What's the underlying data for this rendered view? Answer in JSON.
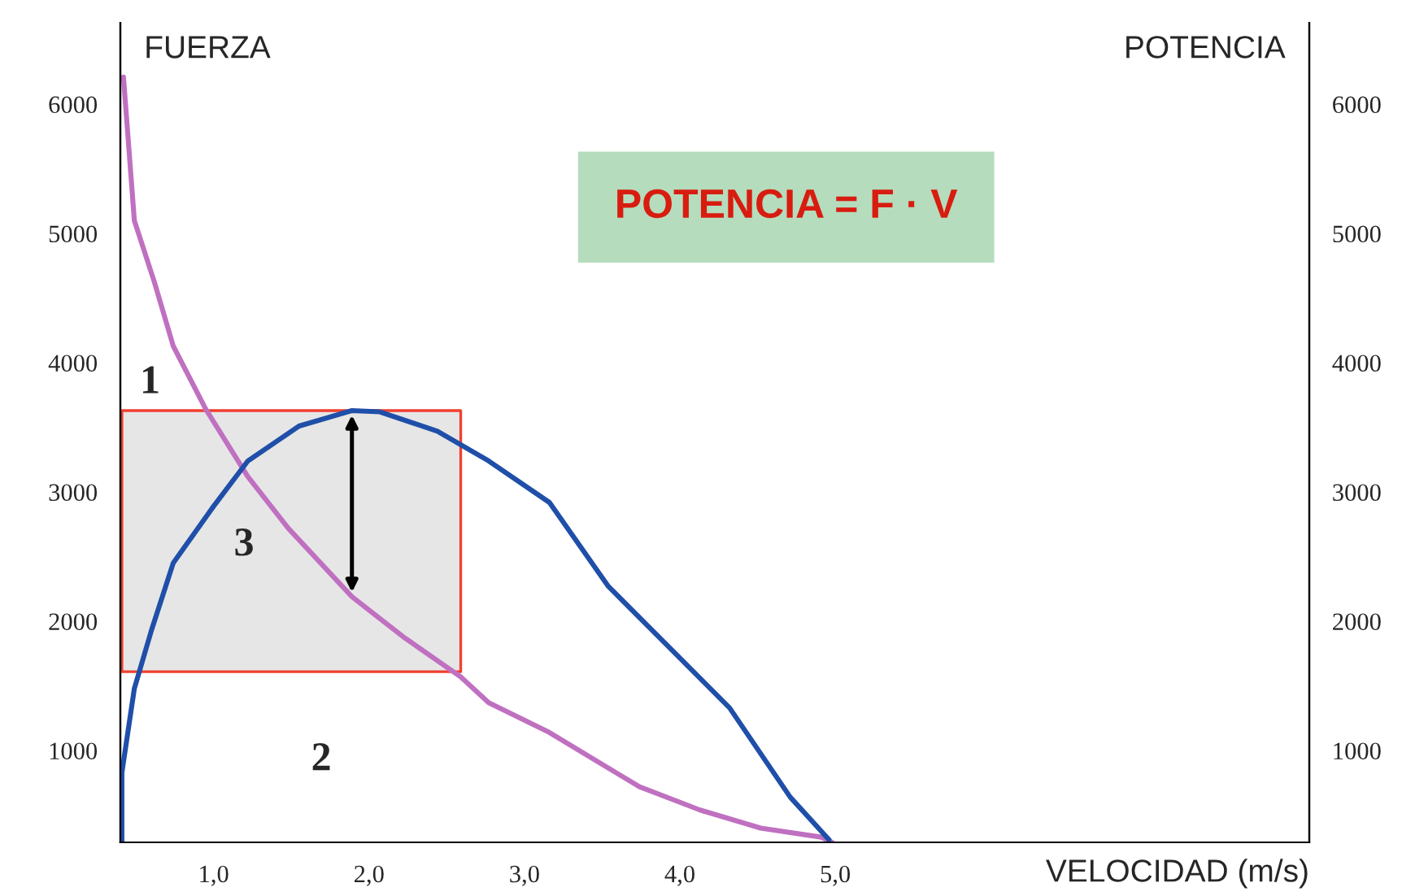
{
  "chart_data": {
    "type": "line",
    "xlabel": "VELOCIDAD (m/s)",
    "ylabel": "FUERZA",
    "y2label": "POTENCIA",
    "xlim": [
      0.4,
      8.05
    ],
    "xticks": [
      {
        "value": 1,
        "label": "1,0"
      },
      {
        "value": 2,
        "label": "2,0"
      },
      {
        "value": 3,
        "label": "3,0"
      },
      {
        "value": 4,
        "label": "4,0"
      },
      {
        "value": 5,
        "label": "5,0"
      }
    ],
    "ylim": [
      290,
      6630
    ],
    "yticks": [
      1000,
      2000,
      3000,
      4000,
      5000,
      6000
    ],
    "y2lim": [
      290,
      6630
    ],
    "y2ticks": [
      1000,
      2000,
      3000,
      4000,
      5000,
      6000
    ],
    "grid": false,
    "legend": false,
    "series": [
      {
        "type": "area",
        "color": "#e6e6e6",
        "x": [
          0.41,
          2.59
        ],
        "lower": [
          1610,
          1610
        ],
        "upper": [
          3630,
          3630
        ],
        "values": [
          null,
          null
        ]
      },
      {
        "color": "#c070c0",
        "x": [
          0.42,
          0.49,
          0.62,
          0.74,
          0.95,
          1.22,
          1.48,
          1.89,
          2.22,
          2.59,
          2.77,
          3.16,
          3.74,
          4.13,
          4.52,
          4.91,
          4.98
        ],
        "values": [
          6210,
          5100,
          4620,
          4130,
          3640,
          3120,
          2720,
          2190,
          1880,
          1570,
          1370,
          1140,
          720,
          540,
          400,
          330,
          290
        ]
      },
      {
        "axis": "y2",
        "color": "#1f4fa8",
        "x": [
          0.41,
          0.41,
          0.49,
          0.6,
          0.74,
          1.0,
          1.22,
          1.55,
          1.89,
          2.07,
          2.44,
          2.77,
          3.16,
          3.54,
          3.93,
          4.32,
          4.71,
          4.96
        ],
        "values": [
          290,
          830,
          1480,
          1930,
          2450,
          2890,
          3240,
          3510,
          3630,
          3620,
          3470,
          3240,
          2920,
          2270,
          1800,
          1330,
          640,
          310
        ]
      }
    ],
    "annotations": [
      "1",
      "3",
      "2",
      "POTENCIA = F · V"
    ]
  }
}
